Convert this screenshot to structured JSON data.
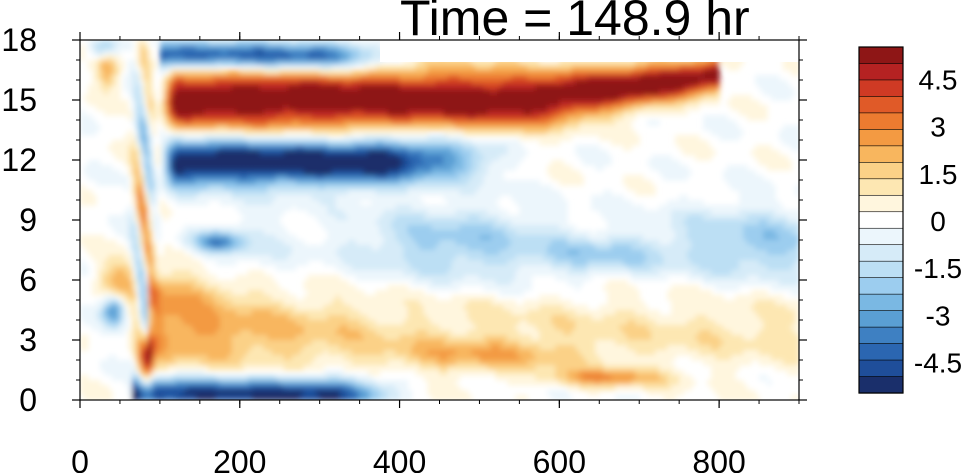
{
  "title": "Time = 148.9 hr",
  "chart_data": {
    "type": "heatmap",
    "title": "Time = 148.9 hr",
    "xlabel": "",
    "ylabel": "",
    "xlim": [
      0,
      900
    ],
    "ylim": [
      0,
      18
    ],
    "x_ticks": [
      0,
      200,
      400,
      600,
      800
    ],
    "y_ticks": [
      0,
      3,
      6,
      9,
      12,
      15,
      18
    ],
    "x_tick_labels": [
      "0",
      "200",
      "400",
      "600",
      "800"
    ],
    "y_tick_labels": [
      "0",
      "3",
      "6",
      "9",
      "12",
      "15",
      "18"
    ],
    "colorbar": {
      "min": -5.5,
      "max": 5.5,
      "levels": [
        -5,
        -4.5,
        -4,
        -3.5,
        -3,
        -2.5,
        -2,
        -1.5,
        -1,
        -0.5,
        0,
        0.5,
        1,
        1.5,
        2,
        2.5,
        3,
        3.5,
        4,
        4.5,
        5
      ],
      "tick_labels": [
        "4.5",
        "3",
        "1.5",
        "0",
        "-1.5",
        "-3",
        "-4.5"
      ],
      "tick_values": [
        4.5,
        3,
        1.5,
        0,
        -1.5,
        -3,
        -4.5
      ],
      "colors": [
        "#1a2f6b",
        "#1f4e9a",
        "#2b66b1",
        "#3e80c2",
        "#5a9fd4",
        "#7ab8e3",
        "#9ccdef",
        "#bcdff4",
        "#d6ebf8",
        "#ecf6fc",
        "#ffffff",
        "#fff6de",
        "#fde7b2",
        "#fbd187",
        "#f8b65e",
        "#f39a42",
        "#ec7b30",
        "#e05a28",
        "#cf3a24",
        "#b52222",
        "#8e1616"
      ]
    },
    "features": [
      {
        "name": "strong positive band",
        "x_range": [
          100,
          800
        ],
        "y_range": [
          14,
          16.5
        ],
        "value": 5.0
      },
      {
        "name": "strong negative band",
        "x_range": [
          100,
          470
        ],
        "y_range": [
          11,
          13
        ],
        "value": -5.0
      },
      {
        "name": "upper negative band",
        "x_range": [
          100,
          380
        ],
        "y_range": [
          16.5,
          17.8
        ],
        "value": -4.0
      },
      {
        "name": "bottom negative band",
        "x_range": [
          70,
          400
        ],
        "y_range": [
          0,
          1.2
        ],
        "value": -4.5
      },
      {
        "name": "lower positive band",
        "x_range": [
          60,
          900
        ],
        "y_range": [
          1,
          6
        ],
        "value": 2.0
      },
      {
        "name": "diffuse negative region",
        "x_range": [
          150,
          850
        ],
        "y_range": [
          6,
          10
        ],
        "value": -1.5
      }
    ]
  }
}
